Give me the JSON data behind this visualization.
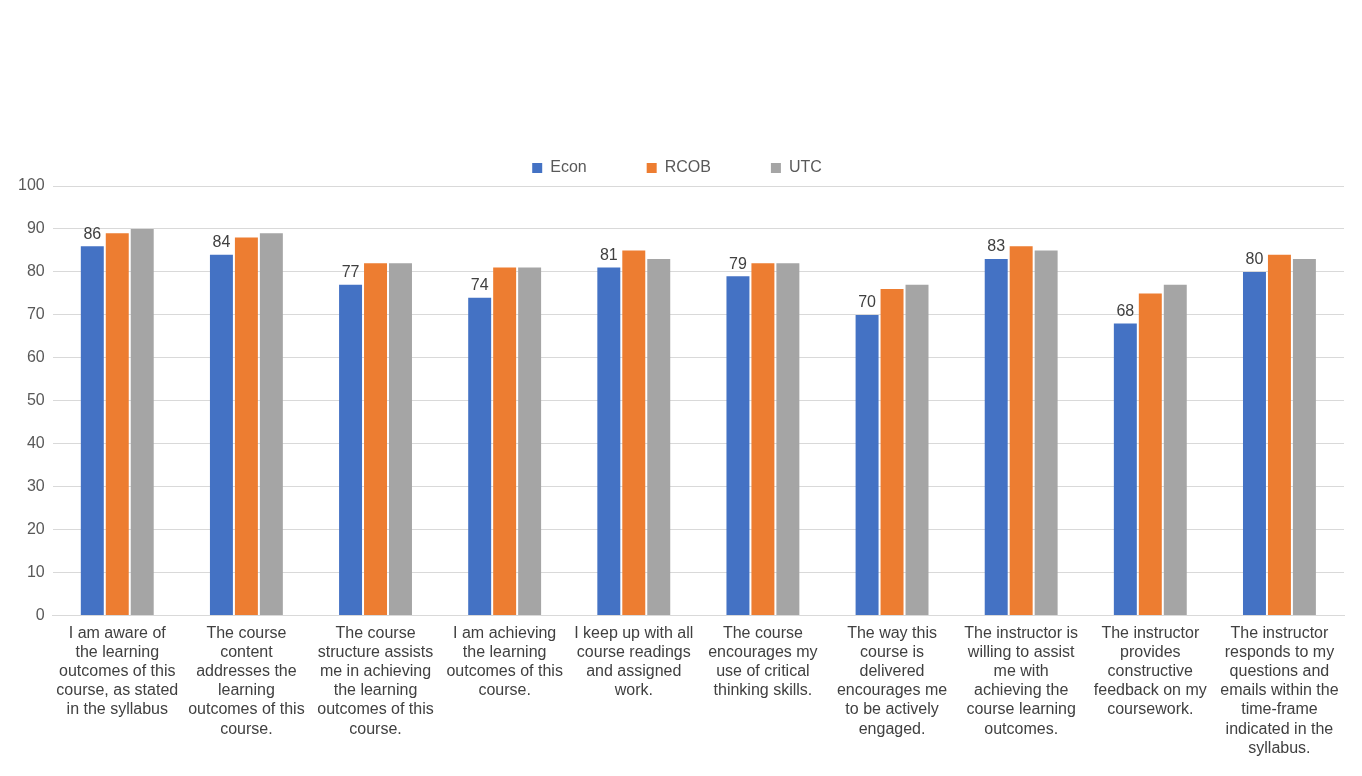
{
  "chart_data": {
    "type": "bar",
    "categories": [
      "I am aware of the learning outcomes of this course, as stated in the syllabus",
      "The course content addresses the learning outcomes of this course.",
      "The course structure assists me in achieving the learning outcomes of this course.",
      "I am achieving the learning outcomes of this course.",
      "I keep up with all course readings and assigned work.",
      "The course encourages my use of critical thinking skills.",
      "The way this course is delivered encourages me to be actively engaged.",
      "The instructor is willing to assist me with achieving the course learning outcomes.",
      "The instructor provides constructive feedback on my coursework.",
      "The instructor responds to my questions and emails within the time-frame indicated in the syllabus."
    ],
    "series": [
      {
        "name": "Econ",
        "color": "#4472c4",
        "values": [
          86,
          84,
          77,
          74,
          81,
          79,
          70,
          83,
          68,
          80
        ],
        "value_labels": [
          "86",
          "84",
          "77",
          "74",
          "81",
          "79",
          "70",
          "83",
          "68",
          "80"
        ]
      },
      {
        "name": "RCOB",
        "color": "#ed7d31",
        "values": [
          89,
          88,
          82,
          81,
          85,
          82,
          76,
          86,
          75,
          84
        ]
      },
      {
        "name": "UTC",
        "color": "#a5a5a5",
        "values": [
          90,
          89,
          82,
          81,
          83,
          82,
          77,
          85,
          77,
          83
        ]
      }
    ],
    "ylim": [
      0,
      100
    ],
    "yticks": [
      0,
      10,
      20,
      30,
      40,
      50,
      60,
      70,
      80,
      90,
      100
    ],
    "grid": "y",
    "legend": "top"
  }
}
